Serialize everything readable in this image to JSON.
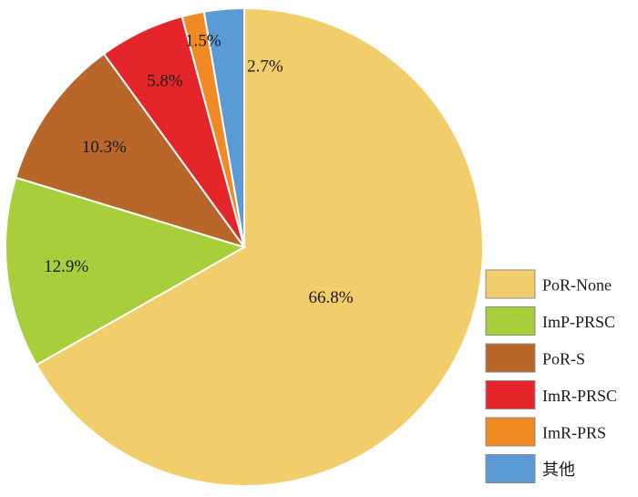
{
  "chart_data": {
    "type": "pie",
    "title": "",
    "start": "12 o'clock",
    "direction": "clockwise",
    "legend_position": "right-bottom",
    "slices": [
      {
        "label": "PoR-None",
        "value": 66.8,
        "value_label": "66.8%",
        "color": "#F2CD6B"
      },
      {
        "label": "ImP-PRSC",
        "value": 12.9,
        "value_label": "12.9%",
        "color": "#A9CE3C"
      },
      {
        "label": "PoR-S",
        "value": 10.3,
        "value_label": "10.3%",
        "color": "#B8662A"
      },
      {
        "label": "ImR-PRSC",
        "value": 5.8,
        "value_label": "5.8%",
        "color": "#E4262A"
      },
      {
        "label": "ImR-PRS",
        "value": 1.5,
        "value_label": "1.5%",
        "color": "#F08A24"
      },
      {
        "label": "其他",
        "value": 2.7,
        "value_label": "2.7%",
        "color": "#5B9BD5"
      }
    ]
  }
}
